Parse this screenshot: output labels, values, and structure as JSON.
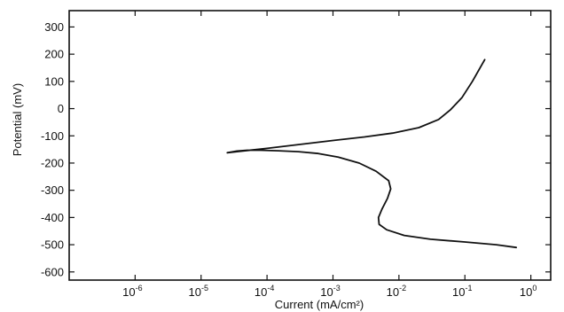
{
  "chart_data": {
    "type": "line",
    "xlabel": "Current (mA/cm²)",
    "ylabel": "Potential (mV)",
    "x_scale": "log",
    "xlim": [
      1e-07,
      2
    ],
    "ylim": [
      -630,
      360
    ],
    "grid": false,
    "x_ticks": [
      {
        "value": 1e-06,
        "mantissa": "10",
        "exp": "-6"
      },
      {
        "value": 1e-05,
        "mantissa": "10",
        "exp": "-5"
      },
      {
        "value": 0.0001,
        "mantissa": "10",
        "exp": "-4"
      },
      {
        "value": 0.001,
        "mantissa": "10",
        "exp": "-3"
      },
      {
        "value": 0.01,
        "mantissa": "10",
        "exp": "-2"
      },
      {
        "value": 0.1,
        "mantissa": "10",
        "exp": "-1"
      },
      {
        "value": 1,
        "mantissa": "10",
        "exp": "0"
      }
    ],
    "y_ticks": [
      300,
      200,
      100,
      0,
      -100,
      -200,
      -300,
      -400,
      -500,
      -600
    ],
    "series": [
      {
        "color": "#111111",
        "points": [
          [
            0.6,
            -510
          ],
          [
            0.3,
            -500
          ],
          [
            0.1,
            -490
          ],
          [
            0.03,
            -480
          ],
          [
            0.012,
            -466
          ],
          [
            0.0065,
            -445
          ],
          [
            0.005,
            -425
          ],
          [
            0.0049,
            -400
          ],
          [
            0.0055,
            -370
          ],
          [
            0.0067,
            -330
          ],
          [
            0.0075,
            -295
          ],
          [
            0.007,
            -265
          ],
          [
            0.0045,
            -230
          ],
          [
            0.0025,
            -200
          ],
          [
            0.0012,
            -178
          ],
          [
            0.0006,
            -165
          ],
          [
            0.0003,
            -158
          ],
          [
            0.00015,
            -155
          ],
          [
            8e-05,
            -153
          ],
          [
            5e-05,
            -153
          ],
          [
            3.5e-05,
            -156
          ],
          [
            2.5e-05,
            -162
          ],
          [
            3.5e-05,
            -158
          ],
          [
            6e-05,
            -152
          ],
          [
            0.0001,
            -146
          ],
          [
            0.0003,
            -132
          ],
          [
            0.001,
            -117
          ],
          [
            0.003,
            -104
          ],
          [
            0.008,
            -90
          ],
          [
            0.02,
            -70
          ],
          [
            0.04,
            -40
          ],
          [
            0.06,
            -5
          ],
          [
            0.09,
            40
          ],
          [
            0.13,
            100
          ],
          [
            0.2,
            180
          ]
        ]
      }
    ]
  }
}
